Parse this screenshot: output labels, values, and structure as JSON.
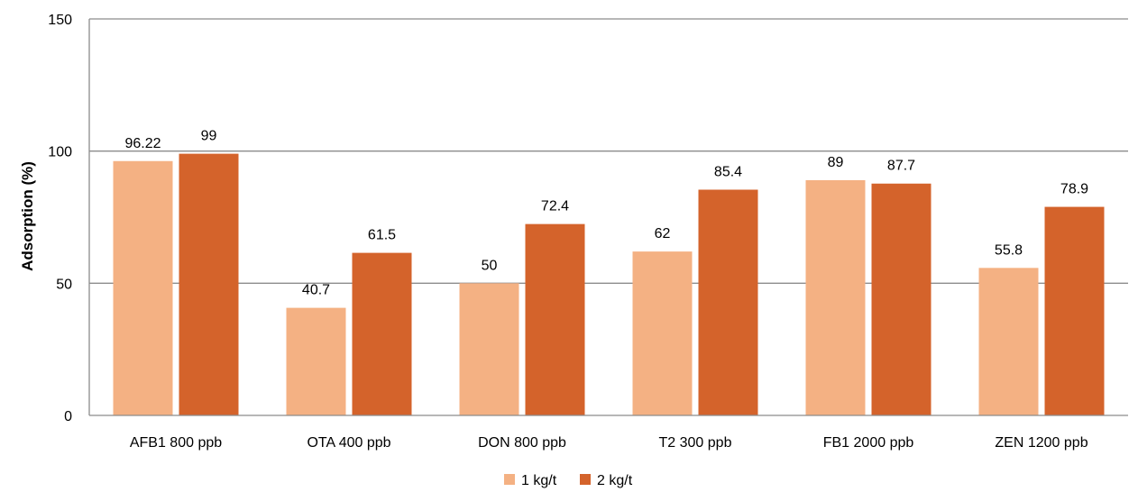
{
  "chart_data": {
    "type": "bar",
    "title": "",
    "xlabel": "",
    "ylabel": "Adsorption (%)",
    "ylim": [
      0,
      150
    ],
    "yticks": [
      0,
      50,
      100,
      150
    ],
    "grid": "horizontal",
    "legend_position": "bottom-center",
    "categories": [
      "AFB1 800 ppb",
      "OTA 400 ppb",
      "DON 800 ppb",
      "T2 300 ppb",
      "FB1 2000 ppb",
      "ZEN 1200 ppb"
    ],
    "series": [
      {
        "name": "1 kg/t",
        "color": "#F4B183",
        "values": [
          96.22,
          40.7,
          50,
          62,
          89,
          55.8
        ],
        "labels": [
          "96.22",
          "40.7",
          "50",
          "62",
          "89",
          "55.8"
        ]
      },
      {
        "name": "2 kg/t",
        "color": "#D4632B",
        "values": [
          99,
          61.5,
          72.4,
          85.4,
          87.7,
          78.9
        ],
        "labels": [
          "99",
          "61.5",
          "72.4",
          "85.4",
          "87.7",
          "78.9"
        ]
      }
    ]
  }
}
